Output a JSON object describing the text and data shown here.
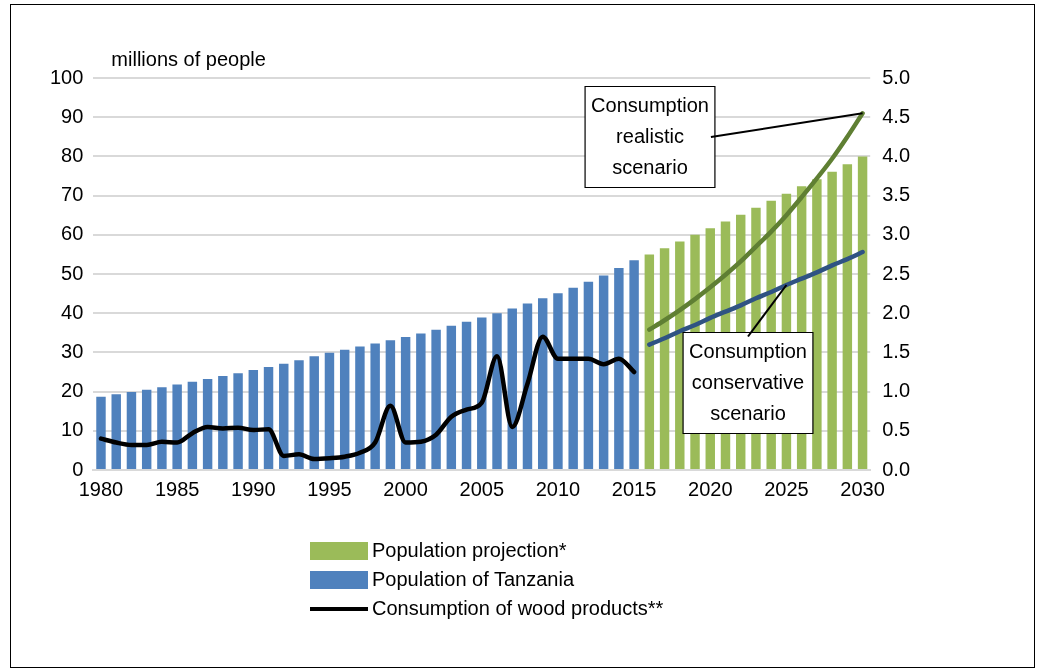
{
  "chart_data": {
    "type": "bar",
    "ylabel": "millions of people",
    "categories": [
      "1980",
      null,
      null,
      null,
      null,
      "1985",
      null,
      null,
      null,
      null,
      "1990",
      null,
      null,
      null,
      null,
      "1995",
      null,
      null,
      null,
      null,
      "2000",
      null,
      null,
      null,
      null,
      "2005",
      null,
      null,
      null,
      null,
      "2010",
      null,
      null,
      null,
      null,
      "2015",
      null,
      null,
      null,
      null,
      "2020",
      null,
      null,
      null,
      null,
      "2025",
      null,
      null,
      null,
      null,
      "2030"
    ],
    "series": [
      {
        "name": "Population projection*",
        "color": "#9bbb59",
        "values": [
          null,
          null,
          null,
          null,
          null,
          null,
          null,
          null,
          null,
          null,
          null,
          null,
          null,
          null,
          null,
          null,
          null,
          null,
          null,
          null,
          null,
          null,
          null,
          null,
          null,
          null,
          null,
          null,
          null,
          null,
          null,
          null,
          null,
          null,
          null,
          null,
          55.0,
          56.6,
          58.3,
          60.0,
          61.7,
          63.4,
          65.1,
          66.9,
          68.7,
          70.5,
          72.4,
          74.2,
          76.1,
          78.0,
          80.0
        ]
      },
      {
        "name": "Population of Tanzania",
        "color": "#4f81bd",
        "values": [
          18.7,
          19.3,
          19.9,
          20.5,
          21.1,
          21.8,
          22.5,
          23.2,
          24.0,
          24.7,
          25.5,
          26.3,
          27.1,
          28.0,
          29.0,
          29.9,
          30.7,
          31.5,
          32.3,
          33.1,
          33.9,
          34.8,
          35.8,
          36.8,
          37.8,
          38.9,
          40.0,
          41.2,
          42.5,
          43.8,
          45.1,
          46.5,
          48.0,
          49.6,
          51.5,
          53.5,
          null,
          null,
          null,
          null,
          null,
          null,
          null,
          null,
          null,
          null,
          null,
          null,
          null,
          null,
          null
        ]
      },
      {
        "name": "Consumption of wood products**",
        "type": "line",
        "axis": "y2",
        "color": "#000000",
        "values": [
          0.4,
          0.35,
          0.32,
          0.32,
          0.36,
          0.35,
          0.47,
          0.55,
          0.53,
          0.54,
          0.51,
          0.52,
          0.18,
          0.2,
          0.14,
          0.15,
          0.17,
          0.22,
          0.35,
          0.82,
          0.35,
          0.36,
          0.45,
          0.68,
          0.77,
          0.86,
          1.45,
          0.55,
          1.1,
          1.7,
          1.42,
          1.42,
          1.42,
          1.35,
          1.42,
          1.25,
          null,
          null,
          null,
          null,
          null,
          null,
          null,
          null,
          null,
          null,
          null,
          null,
          null,
          null,
          null
        ]
      },
      {
        "type": "line",
        "axis": "y2",
        "color": "#5f7f33",
        "values": [
          null,
          null,
          null,
          null,
          null,
          null,
          null,
          null,
          null,
          null,
          null,
          null,
          null,
          null,
          null,
          null,
          null,
          null,
          null,
          null,
          null,
          null,
          null,
          null,
          null,
          null,
          null,
          null,
          null,
          null,
          null,
          null,
          null,
          null,
          null,
          null,
          1.79,
          1.91,
          2.04,
          2.18,
          2.33,
          2.49,
          2.66,
          2.85,
          3.04,
          3.25,
          3.48,
          3.72,
          3.97,
          4.25,
          4.55
        ]
      },
      {
        "type": "line",
        "axis": "y2",
        "color": "#2f5383",
        "values": [
          null,
          null,
          null,
          null,
          null,
          null,
          null,
          null,
          null,
          null,
          null,
          null,
          null,
          null,
          null,
          null,
          null,
          null,
          null,
          null,
          null,
          null,
          null,
          null,
          null,
          null,
          null,
          null,
          null,
          null,
          null,
          null,
          null,
          null,
          null,
          null,
          1.6,
          1.68,
          1.77,
          1.85,
          1.94,
          2.02,
          2.1,
          2.19,
          2.27,
          2.36,
          2.44,
          2.52,
          2.61,
          2.69,
          2.78
        ]
      }
    ],
    "ylim": [
      0,
      100
    ],
    "yticks": [
      0,
      10,
      20,
      30,
      40,
      50,
      60,
      70,
      80,
      90,
      100
    ],
    "y2lim": [
      0,
      5
    ],
    "y2ticks": [
      {
        "value": 0,
        "label": "0.0"
      },
      {
        "value": 0.5,
        "label": "0.5"
      },
      {
        "value": 1,
        "label": "1.0"
      },
      {
        "value": 1.5,
        "label": "1.5"
      },
      {
        "value": 2,
        "label": "2.0"
      },
      {
        "value": 2.5,
        "label": "2.5"
      },
      {
        "value": 3,
        "label": "3.0"
      },
      {
        "value": 3.5,
        "label": "3.5"
      },
      {
        "value": 4,
        "label": "4.0"
      },
      {
        "value": 4.5,
        "label": "4.5"
      },
      {
        "value": 5,
        "label": "5.0"
      }
    ],
    "grid": "y",
    "legend": "bottom",
    "marker": "none",
    "line_style": "solid",
    "annotations": [
      {
        "text": "Consumption realistic scenario",
        "x": "2030",
        "y": 91
      },
      {
        "text": "Consumption conservative scenario",
        "x": "2025",
        "y": 47.2
      }
    ]
  }
}
